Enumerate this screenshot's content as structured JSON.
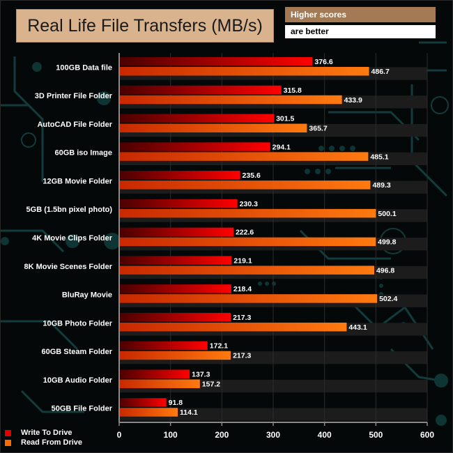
{
  "header": {
    "title": "Real Life File Transfers (MB/s)",
    "note_line1": "Higher scores",
    "note_line2": "are better"
  },
  "colors": {
    "write": "#e00000",
    "read": "#ff6a00",
    "title_bg": "#d9b28e",
    "note_bg": "#a47a55"
  },
  "chart_data": {
    "type": "bar",
    "orientation": "horizontal",
    "title": "Real Life File Transfers (MB/s)",
    "xlabel": "",
    "ylabel": "",
    "xlim": [
      0,
      600
    ],
    "xticks": [
      0,
      100,
      200,
      300,
      400,
      500,
      600
    ],
    "legend_position": "bottom-left",
    "categories": [
      "100GB Data file",
      "3D Printer File Folder",
      "AutoCAD File Folder",
      "60GB iso Image",
      "12GB Movie Folder",
      "5GB (1.5bn pixel photo)",
      "4K Movie Clips Folder",
      "8K Movie Scenes Folder",
      "BluRay Movie",
      "10GB Photo Folder",
      "60GB Steam Folder",
      "10GB Audio Folder",
      "50GB File Folder"
    ],
    "series": [
      {
        "name": "Write To  Drive",
        "labels": [
          "376.6",
          "315.8",
          "301.5",
          "294.1",
          "235.6",
          "230.3",
          "222.6",
          "219.1",
          "218.4",
          "217.3",
          "172.1",
          "137.3",
          "91.8"
        ],
        "values": [
          376.6,
          315.8,
          301.5,
          294.1,
          235.6,
          230.3,
          222.6,
          219.1,
          218.4,
          217.3,
          172.1,
          137.3,
          91.8
        ]
      },
      {
        "name": "Read From  Drive",
        "labels": [
          "486.7",
          "433.9",
          "365.7",
          "485.1",
          "489.3",
          "500.1",
          "499.8",
          "496.8",
          "502.4",
          "443.1",
          "217.3",
          "157.2",
          "114.1"
        ],
        "values": [
          486.7,
          433.9,
          365.7,
          485.1,
          489.3,
          500.1,
          499.8,
          496.8,
          502.4,
          443.1,
          217.3,
          157.2,
          114.1
        ]
      }
    ]
  }
}
